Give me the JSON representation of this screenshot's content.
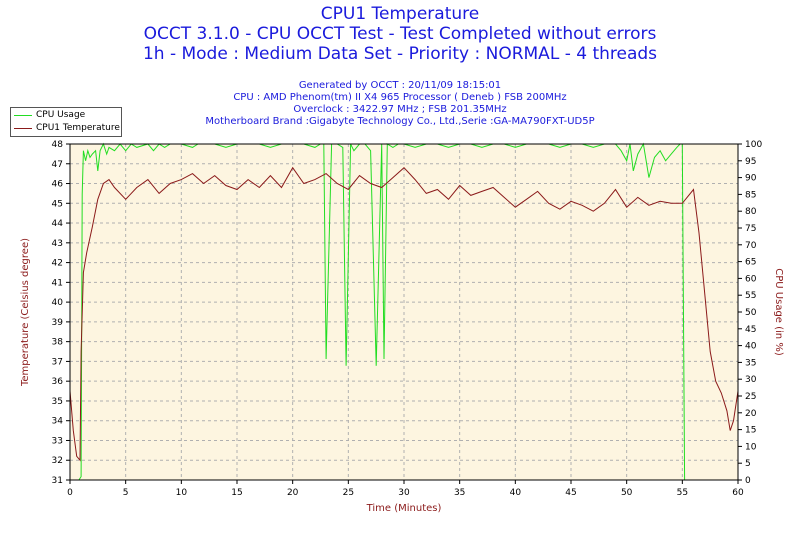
{
  "titles": {
    "title": "CPU1 Temperature",
    "line2": "OCCT 3.1.0 - CPU OCCT Test - Test Completed without errors",
    "line3": "1h - Mode : Medium Data Set - Priority : NORMAL - 4 threads"
  },
  "info": {
    "generated": "Generated by OCCT : 20/11/09 18:15:01",
    "cpu": "CPU : AMD Phenom(tm) II X4 965 Processor ( Deneb ) FSB 200MHz",
    "overclock": "Overclock : 3422.97 MHz ; FSB 201.35MHz",
    "motherboard": "Motherboard Brand :Gigabyte Technology Co., Ltd.,Serie :GA-MA790FXT-UD5P"
  },
  "colors": {
    "temp": "#8b1a1a",
    "usage": "#22dd22",
    "plot_bg": "#fdf5e0",
    "grid": "#b0b0b0",
    "title": "#1a1adc"
  },
  "chart_data": {
    "type": "line",
    "xlabel": "Time (Minutes)",
    "ylabel_left": "Temperature (Celsius degree)",
    "ylabel_right": "CPU Usage (in %)",
    "xlim": [
      0,
      60
    ],
    "ylim_left": [
      31,
      48
    ],
    "ylim_right": [
      0,
      100
    ],
    "x_ticks": [
      0,
      5,
      10,
      15,
      20,
      25,
      30,
      35,
      40,
      45,
      50,
      55,
      60
    ],
    "y_left_ticks": [
      31,
      32,
      33,
      34,
      35,
      36,
      37,
      38,
      39,
      40,
      41,
      42,
      43,
      44,
      45,
      46,
      47,
      48
    ],
    "y_right_ticks": [
      0,
      5,
      10,
      15,
      20,
      25,
      30,
      35,
      40,
      45,
      50,
      55,
      60,
      65,
      70,
      75,
      80,
      85,
      90,
      95,
      100
    ],
    "grid": true,
    "legend": "top-left",
    "series": [
      {
        "name": "CPU Usage",
        "axis": "right",
        "x": [
          0,
          0.5,
          0.8,
          1.0,
          1.1,
          1.2,
          1.4,
          1.6,
          1.8,
          2.0,
          2.3,
          2.5,
          2.7,
          3.0,
          3.3,
          3.5,
          4.0,
          4.5,
          5.0,
          5.5,
          6.0,
          7.0,
          7.5,
          8.0,
          8.5,
          9.0,
          10.0,
          11.0,
          11.5,
          12.0,
          13.0,
          14.0,
          15.0,
          16.0,
          17.0,
          18.0,
          19.0,
          20.0,
          21.0,
          22.0,
          22.5,
          22.8,
          23.0,
          23.5,
          24.0,
          24.5,
          24.8,
          25.2,
          25.5,
          26.0,
          26.5,
          27.0,
          27.5,
          28.0,
          28.2,
          28.5,
          29.0,
          29.5,
          30.0,
          31.0,
          32.0,
          33.0,
          34.0,
          35.0,
          36.0,
          37.0,
          38.0,
          39.0,
          40.0,
          41.0,
          42.0,
          43.0,
          44.0,
          45.0,
          46.0,
          47.0,
          48.0,
          49.0,
          49.5,
          50.0,
          50.3,
          50.6,
          51.0,
          51.5,
          52.0,
          52.5,
          53.0,
          53.5,
          54.0,
          54.5,
          54.8,
          55.0,
          55.2,
          55.4,
          55.6,
          56.0,
          60.0
        ],
        "y": [
          0,
          0,
          0,
          1,
          85,
          98,
          95,
          98,
          96,
          97,
          98,
          92,
          98,
          100,
          97,
          99,
          98,
          100,
          98,
          100,
          99,
          100,
          98,
          100,
          99,
          100,
          100,
          99,
          100,
          100,
          100,
          99,
          100,
          100,
          100,
          99,
          100,
          100,
          100,
          99,
          100,
          100,
          36,
          100,
          100,
          99,
          34,
          100,
          98,
          100,
          100,
          98,
          34,
          100,
          36,
          100,
          99,
          100,
          100,
          99,
          100,
          100,
          99,
          100,
          100,
          99,
          100,
          100,
          99,
          100,
          100,
          100,
          99,
          100,
          100,
          99,
          100,
          100,
          98,
          95,
          100,
          92,
          97,
          100,
          90,
          96,
          98,
          95,
          97,
          99,
          100,
          100,
          0,
          0,
          0,
          0,
          0
        ]
      },
      {
        "name": "CPU1 Temperature",
        "axis": "left",
        "x": [
          0,
          0.3,
          0.6,
          0.9,
          1.0,
          1.2,
          1.5,
          2.0,
          2.5,
          3.0,
          3.5,
          4.0,
          5.0,
          6.0,
          7.0,
          8.0,
          9.0,
          10.0,
          11.0,
          12.0,
          13.0,
          14.0,
          15.0,
          16.0,
          17.0,
          18.0,
          19.0,
          20.0,
          21.0,
          22.0,
          23.0,
          24.0,
          25.0,
          26.0,
          27.0,
          28.0,
          29.0,
          30.0,
          31.0,
          32.0,
          33.0,
          34.0,
          35.0,
          36.0,
          37.0,
          38.0,
          39.0,
          40.0,
          41.0,
          42.0,
          43.0,
          44.0,
          45.0,
          46.0,
          47.0,
          48.0,
          49.0,
          50.0,
          51.0,
          52.0,
          53.0,
          54.0,
          55.0,
          56.0,
          56.5,
          57.0,
          57.5,
          58.0,
          58.5,
          59.0,
          59.3,
          59.6,
          60.0
        ],
        "y": [
          35.5,
          33.5,
          32.2,
          32.0,
          37.5,
          41.5,
          42.5,
          43.8,
          45.2,
          46.0,
          46.2,
          45.8,
          45.2,
          45.8,
          46.2,
          45.5,
          46.0,
          46.2,
          46.5,
          46.0,
          46.4,
          45.9,
          45.7,
          46.2,
          45.8,
          46.4,
          45.8,
          46.8,
          46.0,
          46.2,
          46.5,
          46.0,
          45.7,
          46.4,
          46.0,
          45.8,
          46.3,
          46.8,
          46.2,
          45.5,
          45.7,
          45.2,
          45.9,
          45.4,
          45.6,
          45.8,
          45.3,
          44.8,
          45.2,
          45.6,
          45.0,
          44.7,
          45.1,
          44.9,
          44.6,
          45.0,
          45.7,
          44.8,
          45.3,
          44.9,
          45.1,
          45.0,
          45.0,
          45.7,
          43.5,
          40.5,
          37.5,
          36.0,
          35.4,
          34.5,
          33.5,
          34.0,
          35.5
        ]
      }
    ]
  }
}
